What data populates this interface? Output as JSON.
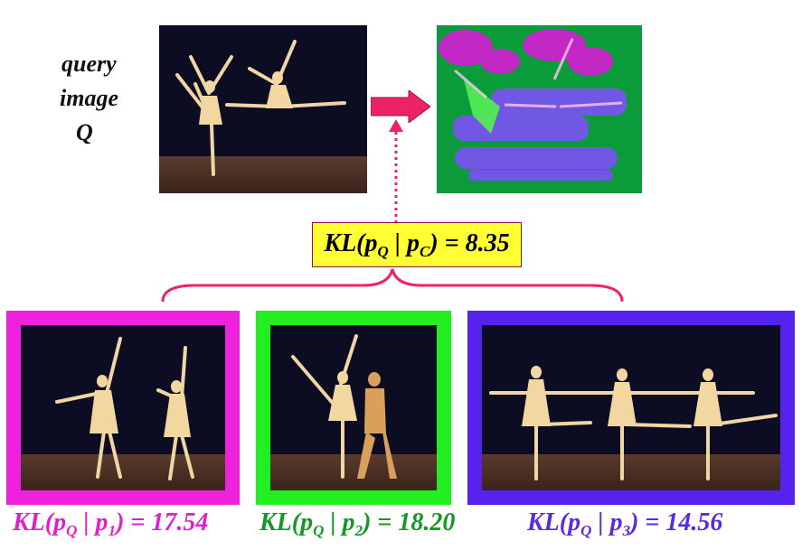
{
  "query_label": {
    "line1": "query",
    "line2": "image",
    "line3": "Q"
  },
  "combined": {
    "kl": "KL(p",
    "sub_q": "Q",
    "bar": " | p",
    "sub_c": "C",
    "val": ") = 8.35"
  },
  "captions": [
    {
      "kl": "KL(p",
      "sub_q": "Q",
      "bar": " | p",
      "sub_i": "1",
      "val": ") = 17.54",
      "color": "#e020d0"
    },
    {
      "kl": "KL(p",
      "sub_q": "Q",
      "bar": " | p",
      "sub_i": "2",
      "val": ") = 18.20",
      "color": "#129a24"
    },
    {
      "kl": "KL(p",
      "sub_q": "Q",
      "bar": " | p",
      "sub_i": "3",
      "val": ") = 14.56",
      "color": "#5a2ae0"
    }
  ],
  "colors": {
    "magenta": "#ee22dd",
    "green": "#22ee22",
    "violet": "#5522ee",
    "arrow": "#ee2266",
    "highlight": "#ffff33"
  }
}
